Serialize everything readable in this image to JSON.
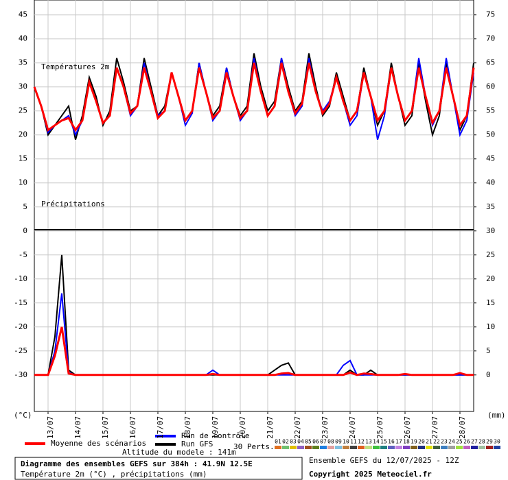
{
  "chart_data": {
    "type": "line",
    "title": "Diagramme des ensembles GEFS sur 384h : 41.9N 12.5E",
    "subtitle": "Température 2m (°C) , précipitations (mm)",
    "ylabel": "(°C)",
    "y2label": "(mm)",
    "annotations": [
      "Températures 2m",
      "Précipitations",
      "Altitude du modele : 141m",
      "Ensemble GEFS du 12/07/2025 - 12Z",
      "Copyright 2025 Meteociel.fr"
    ],
    "x": [
      0,
      6,
      12,
      18,
      24,
      30,
      36,
      42,
      48,
      54,
      60,
      66,
      72,
      78,
      84,
      90,
      96,
      102,
      108,
      114,
      120,
      126,
      132,
      138,
      144,
      150,
      156,
      162,
      168,
      174,
      180,
      186,
      192,
      198,
      204,
      210,
      216,
      222,
      228,
      234,
      240,
      246,
      252,
      258,
      264,
      270,
      276,
      282,
      288,
      294,
      300,
      306,
      312,
      318,
      324,
      330,
      336,
      342,
      348,
      354,
      360,
      366,
      372,
      378,
      384
    ],
    "xlim": [
      0,
      384
    ],
    "xticks": [
      {
        "value": 12,
        "label": "13/07"
      },
      {
        "value": 36,
        "label": "14/07"
      },
      {
        "value": 60,
        "label": "15/07"
      },
      {
        "value": 84,
        "label": "16/07"
      },
      {
        "value": 108,
        "label": "17/07"
      },
      {
        "value": 132,
        "label": "18/07"
      },
      {
        "value": 156,
        "label": "19/07"
      },
      {
        "value": 180,
        "label": "20/07"
      },
      {
        "value": 204,
        "label": "21/07"
      },
      {
        "value": 228,
        "label": "22/07"
      },
      {
        "value": 252,
        "label": "23/07"
      },
      {
        "value": 276,
        "label": "24/07"
      },
      {
        "value": 300,
        "label": "25/07"
      },
      {
        "value": 324,
        "label": "26/07"
      },
      {
        "value": 348,
        "label": "27/07"
      },
      {
        "value": 372,
        "label": "28/07"
      }
    ],
    "ylim": [
      -37.6,
      48.1
    ],
    "yticks": [
      45,
      40,
      35,
      30,
      25,
      20,
      15,
      10,
      5,
      0,
      -5,
      -10,
      -15,
      -20,
      -25,
      -30
    ],
    "y2lim": [
      -7.6,
      78.1
    ],
    "y2ticks": [
      75,
      70,
      65,
      60,
      55,
      50,
      45,
      40,
      35,
      30,
      25,
      20,
      15,
      10,
      5,
      0
    ],
    "grid": true,
    "series": [
      {
        "name": "Moyenne des scénarios",
        "color": "#ff0000",
        "width": 3,
        "values": [
          30,
          26,
          21,
          22,
          23,
          23.5,
          21,
          23,
          31,
          27,
          22.5,
          24,
          34,
          30,
          24.5,
          26,
          34,
          29,
          23.5,
          25,
          33,
          28,
          23,
          25,
          34,
          29,
          23.5,
          25,
          33,
          28,
          23.5,
          25,
          35,
          29,
          24,
          26,
          35,
          29,
          24.5,
          26.5,
          35,
          29,
          24.5,
          26.5,
          32,
          27,
          23,
          25,
          33,
          28,
          23,
          25,
          34,
          28,
          23,
          25,
          34,
          28,
          22.5,
          25,
          34,
          28,
          22,
          24,
          34
        ]
      },
      {
        "name": "Run de contrôle",
        "color": "#0000ff",
        "width": 2,
        "values": [
          30,
          26,
          20.5,
          22,
          23,
          24,
          20,
          23,
          31,
          27,
          22.5,
          24,
          34,
          30,
          24,
          26,
          35,
          29,
          24,
          25,
          33,
          28,
          22,
          24.5,
          35,
          29,
          23,
          25,
          34,
          28,
          23,
          25,
          36,
          29,
          24,
          26,
          36,
          29,
          24,
          26,
          36,
          29,
          25,
          27,
          32,
          27,
          22,
          24,
          33,
          28,
          19,
          24,
          34,
          28,
          23,
          25,
          36,
          28,
          22,
          25,
          36,
          28,
          20,
          23,
          33
        ]
      },
      {
        "name": "Run GFS",
        "color": "#000000",
        "width": 2,
        "values": [
          30,
          26,
          20,
          22,
          24,
          26,
          19,
          24,
          32,
          28,
          22,
          25,
          36,
          31,
          25,
          26,
          36,
          30,
          24,
          26,
          33,
          28,
          23,
          25,
          35,
          29,
          24,
          26,
          34,
          28,
          24,
          26,
          37,
          30,
          25,
          27,
          36,
          30,
          25,
          27,
          37,
          30,
          24,
          26,
          33,
          28,
          23,
          25,
          34,
          28,
          22,
          25,
          35,
          28,
          22,
          24,
          35,
          27,
          20,
          24,
          35,
          28,
          21,
          24,
          35
        ]
      },
      {
        "color": "#ff0000",
        "width": 3,
        "axis": "y2",
        "values": [
          0,
          0,
          0,
          4,
          10,
          0.3,
          0,
          0,
          0,
          0,
          0,
          0,
          0,
          0,
          0,
          0,
          0,
          0,
          0,
          0,
          0,
          0,
          0,
          0,
          0,
          0,
          0.2,
          0,
          0,
          0,
          0,
          0,
          0,
          0,
          0,
          0,
          0.3,
          0.4,
          0,
          0,
          0,
          0,
          0,
          0,
          0,
          0,
          0.5,
          0,
          0.3,
          0.2,
          0,
          0,
          0,
          0,
          0.2,
          0,
          0,
          0,
          0,
          0,
          0,
          0,
          0.4,
          0,
          0
        ]
      },
      {
        "color": "#0000ff",
        "width": 2,
        "axis": "y2",
        "values": [
          0,
          0,
          0,
          5,
          17,
          0.5,
          0,
          0,
          0,
          0,
          0,
          0,
          0,
          0,
          0,
          0,
          0,
          0,
          0,
          0,
          0,
          0,
          0,
          0,
          0,
          0,
          1,
          0,
          0,
          0,
          0,
          0,
          0,
          0,
          0,
          0,
          0,
          0,
          0,
          0,
          0,
          0,
          0,
          0,
          0,
          2,
          3,
          0,
          0,
          0,
          0,
          0,
          0,
          0,
          0,
          0,
          0,
          0,
          0,
          0,
          0,
          0,
          0,
          0,
          0
        ]
      },
      {
        "color": "#000000",
        "width": 2,
        "axis": "y2",
        "values": [
          0,
          0,
          0,
          8,
          25,
          1,
          0,
          0,
          0,
          0,
          0,
          0,
          0,
          0,
          0,
          0,
          0,
          0,
          0,
          0,
          0,
          0,
          0,
          0,
          0,
          0,
          0,
          0,
          0,
          0,
          0,
          0,
          0,
          0,
          0,
          1,
          2,
          2.5,
          0,
          0,
          0,
          0,
          0,
          0,
          0,
          0,
          1,
          0,
          0,
          1,
          0,
          0,
          0,
          0,
          0,
          0,
          0,
          0,
          0,
          0,
          0,
          0,
          0,
          0,
          0
        ]
      }
    ],
    "perturbations": {
      "label": "30 Perts.",
      "members": [
        {
          "label": "01",
          "color": "#e07020"
        },
        {
          "label": "02",
          "color": "#70c070"
        },
        {
          "label": "03",
          "color": "#e0c000"
        },
        {
          "label": "04",
          "color": "#9060c0"
        },
        {
          "label": "05",
          "color": "#a05020"
        },
        {
          "label": "06",
          "color": "#608020"
        },
        {
          "label": "07",
          "color": "#2080e0"
        },
        {
          "label": "08",
          "color": "#e0a0a0"
        },
        {
          "label": "09",
          "color": "#80c0e0"
        },
        {
          "label": "10",
          "color": "#c08040"
        },
        {
          "label": "11",
          "color": "#404040"
        },
        {
          "label": "12",
          "color": "#e06020"
        },
        {
          "label": "13",
          "color": "#c0e080"
        },
        {
          "label": "14",
          "color": "#40c040"
        },
        {
          "label": "15",
          "color": "#208080"
        },
        {
          "label": "16",
          "color": "#6060c0"
        },
        {
          "label": "17",
          "color": "#c080e0"
        },
        {
          "label": "18",
          "color": "#8040c0"
        },
        {
          "label": "19",
          "color": "#806020"
        },
        {
          "label": "20",
          "color": "#203080"
        },
        {
          "label": "21",
          "color": "#e0e000"
        },
        {
          "label": "22",
          "color": "#406040"
        },
        {
          "label": "23",
          "color": "#4080c0"
        },
        {
          "label": "24",
          "color": "#a0a0a0"
        },
        {
          "label": "25",
          "color": "#a0e040"
        },
        {
          "label": "26",
          "color": "#c060c0"
        },
        {
          "label": "27",
          "color": "#2020a0"
        },
        {
          "label": "28",
          "color": "#a0c0a0"
        },
        {
          "label": "29",
          "color": "#a02020"
        },
        {
          "label": "30",
          "color": "#2040a0"
        }
      ]
    }
  }
}
